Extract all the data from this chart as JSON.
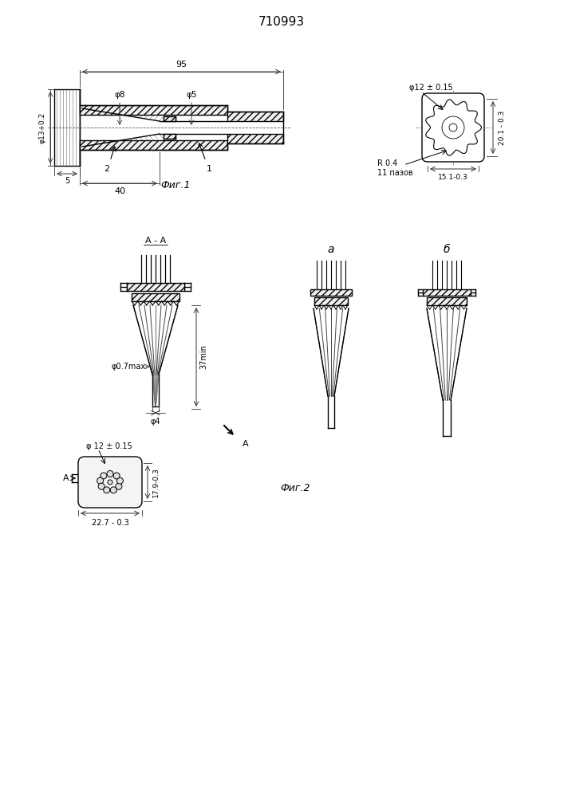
{
  "title": "710993",
  "fig1_label": "Фиг.1",
  "fig2_label": "Фиг.2",
  "label_a": "а",
  "label_b": "б",
  "bg_color": "#ffffff",
  "line_color": "#000000",
  "dim_95": "95",
  "dim_40": "40",
  "dim_5": "5",
  "phi13": "φ13+0.2",
  "phi8": "φ8",
  "phi5": "φ5",
  "lbl1": "1",
  "lbl2": "2",
  "phi12_ev": "φ12 ± 0.15",
  "dim201": "20.1 - 0.3",
  "dim151": "15.1-0.3",
  "R04": "R 0.4",
  "pazov": "11 пазов",
  "AA": "A - A",
  "dim37": "37min",
  "phi07": "φ0.7max",
  "phi4": "φ4",
  "phi12_bot": "φ 12 ± 0.15",
  "dim179": "17.9-0.3",
  "dim227": "22.7 - 0.3"
}
